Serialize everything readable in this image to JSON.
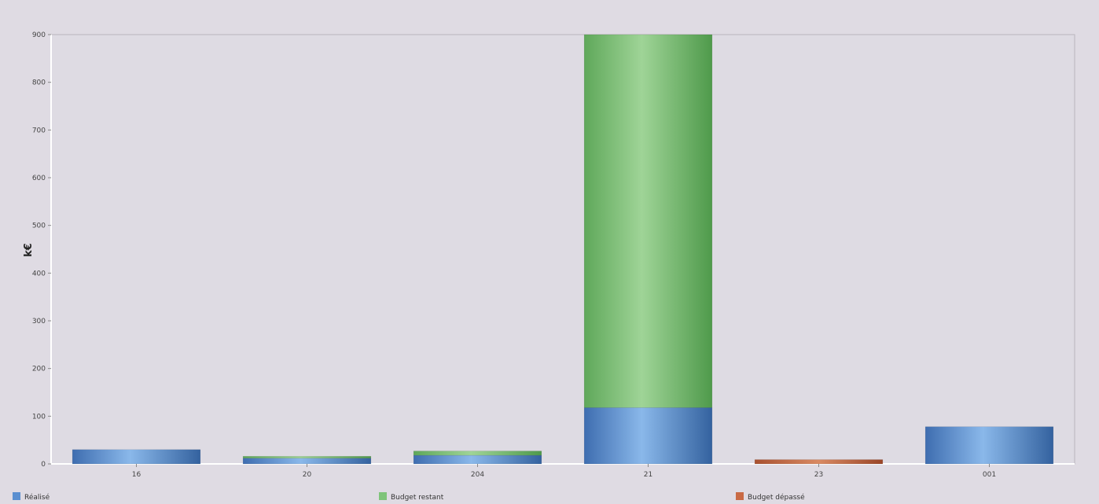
{
  "chart_data": {
    "type": "bar",
    "stacked": true,
    "categories": [
      "16",
      "20",
      "204",
      "21",
      "23",
      "001"
    ],
    "series": [
      {
        "name": "Réalisé",
        "color": "#5b8fd0",
        "values": [
          30,
          12,
          18,
          118,
          0,
          78
        ]
      },
      {
        "name": "Budget restant",
        "color": "#7fc47a",
        "values": [
          0,
          4,
          9,
          782,
          0,
          0
        ]
      },
      {
        "name": "Budget dépassé",
        "color": "#c96a45",
        "values": [
          0,
          0,
          0,
          0,
          9,
          0
        ]
      }
    ],
    "ylabel": "k€",
    "xlabel": "",
    "title": "",
    "ylim": [
      0,
      900
    ],
    "yticks": [
      0,
      100,
      200,
      300,
      400,
      500,
      600,
      700,
      800,
      900
    ],
    "grid": false,
    "legend_position": "bottom"
  }
}
